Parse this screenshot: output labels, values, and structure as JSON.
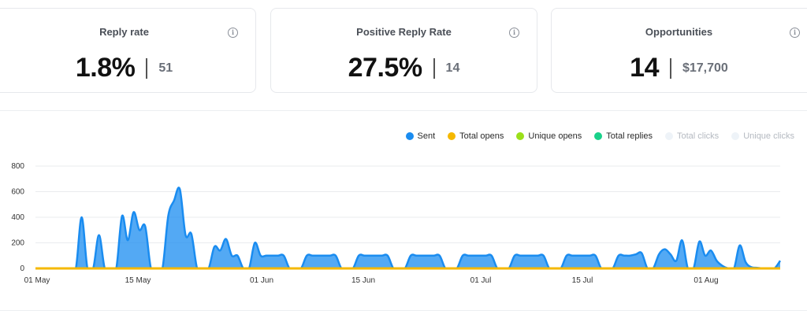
{
  "cards": [
    {
      "title": "Reply rate",
      "main": "1.8%",
      "sub": "51"
    },
    {
      "title": "Positive Reply Rate",
      "main": "27.5%",
      "sub": "14"
    },
    {
      "title": "Opportunities",
      "main": "14",
      "sub": "$17,700"
    }
  ],
  "legend": [
    {
      "label": "Sent",
      "color": "#1a8cf0",
      "active": true
    },
    {
      "label": "Total opens",
      "color": "#f5b800",
      "active": true
    },
    {
      "label": "Unique opens",
      "color": "#9be01a",
      "active": true
    },
    {
      "label": "Total replies",
      "color": "#19d18a",
      "active": true
    },
    {
      "label": "Total clicks",
      "color": "#eef3f8",
      "active": false
    },
    {
      "label": "Unique clicks",
      "color": "#eef3f8",
      "active": false
    }
  ],
  "chart_data": {
    "type": "area",
    "y_ticks": [
      0,
      200,
      400,
      600,
      800
    ],
    "ylim": [
      0,
      800
    ],
    "x_ticks": [
      "01 May",
      "15 May",
      "01 Jun",
      "15 Jun",
      "01 Jul",
      "15 Jul",
      "01 Aug"
    ],
    "series": [
      {
        "name": "Sent",
        "color": "#1a8cf0",
        "values": [
          0,
          0,
          0,
          0,
          0,
          0,
          0,
          0,
          400,
          0,
          0,
          260,
          0,
          0,
          0,
          410,
          220,
          440,
          300,
          330,
          0,
          0,
          0,
          410,
          530,
          620,
          260,
          270,
          0,
          0,
          0,
          170,
          140,
          230,
          100,
          100,
          0,
          0,
          200,
          100,
          100,
          100,
          100,
          100,
          0,
          0,
          0,
          100,
          100,
          100,
          100,
          100,
          100,
          0,
          0,
          0,
          100,
          100,
          100,
          100,
          100,
          100,
          0,
          0,
          0,
          100,
          100,
          100,
          100,
          100,
          100,
          0,
          0,
          0,
          100,
          100,
          100,
          100,
          100,
          100,
          0,
          0,
          0,
          100,
          100,
          100,
          100,
          100,
          100,
          0,
          0,
          0,
          100,
          100,
          100,
          100,
          100,
          100,
          0,
          0,
          0,
          100,
          100,
          100,
          110,
          120,
          0,
          0,
          110,
          150,
          110,
          60,
          220,
          0,
          0,
          210,
          100,
          140,
          60,
          20,
          0,
          0,
          180,
          50,
          10,
          5,
          0,
          0,
          0,
          60
        ]
      },
      {
        "name": "Total opens",
        "color": "#f5b800",
        "values": [
          0
        ]
      }
    ]
  }
}
